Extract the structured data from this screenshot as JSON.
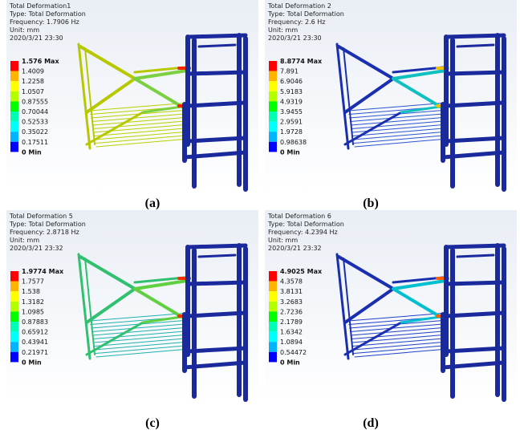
{
  "panels": [
    {
      "header": [
        "Total Deformation1",
        "Type: Total Deformation",
        "Frequency: 1.7906 Hz",
        "Unit: mm",
        "2020/3/21 23:30"
      ],
      "legend": [
        "1.576 Max",
        "1.4009",
        "1.2258",
        "1.0507",
        "0.87555",
        "0.70044",
        "0.52533",
        "0.35022",
        "0.17511",
        "0 Min"
      ],
      "caption": "(a)"
    },
    {
      "header": [
        "Total Deformation 2",
        "Type: Total Deformation",
        "Frequency: 2.6 Hz",
        "Unit: mm",
        "2020/3/21 23:30"
      ],
      "legend": [
        "8.8774 Max",
        "7.891",
        "6.9046",
        "5.9183",
        "4.9319",
        "3.9455",
        "2.9591",
        "1.9728",
        "0.98638",
        "0 Min"
      ],
      "caption": "(b)"
    },
    {
      "header": [
        "Total Deformation 5",
        "Type: Total Deformation",
        "Frequency: 2.8718 Hz",
        "Unit: mm",
        "2020/3/21 23:32"
      ],
      "legend": [
        "1.9774 Max",
        "1.7577",
        "1.538",
        "1.3182",
        "1.0985",
        "0.87883",
        "0.65912",
        "0.43941",
        "0.21971",
        "0 Min"
      ],
      "caption": "(c)"
    },
    {
      "header": [
        "Total Deformation 6",
        "Type: Total Deformation",
        "Frequency: 4.2394 Hz",
        "Unit: mm",
        "2020/3/21 23:32"
      ],
      "legend": [
        "4.9025 Max",
        "4.3578",
        "3.8131",
        "3.2683",
        "2.7236",
        "2.1789",
        "1.6342",
        "1.0894",
        "0.54472",
        "0 Min"
      ],
      "caption": "(d)"
    }
  ]
}
